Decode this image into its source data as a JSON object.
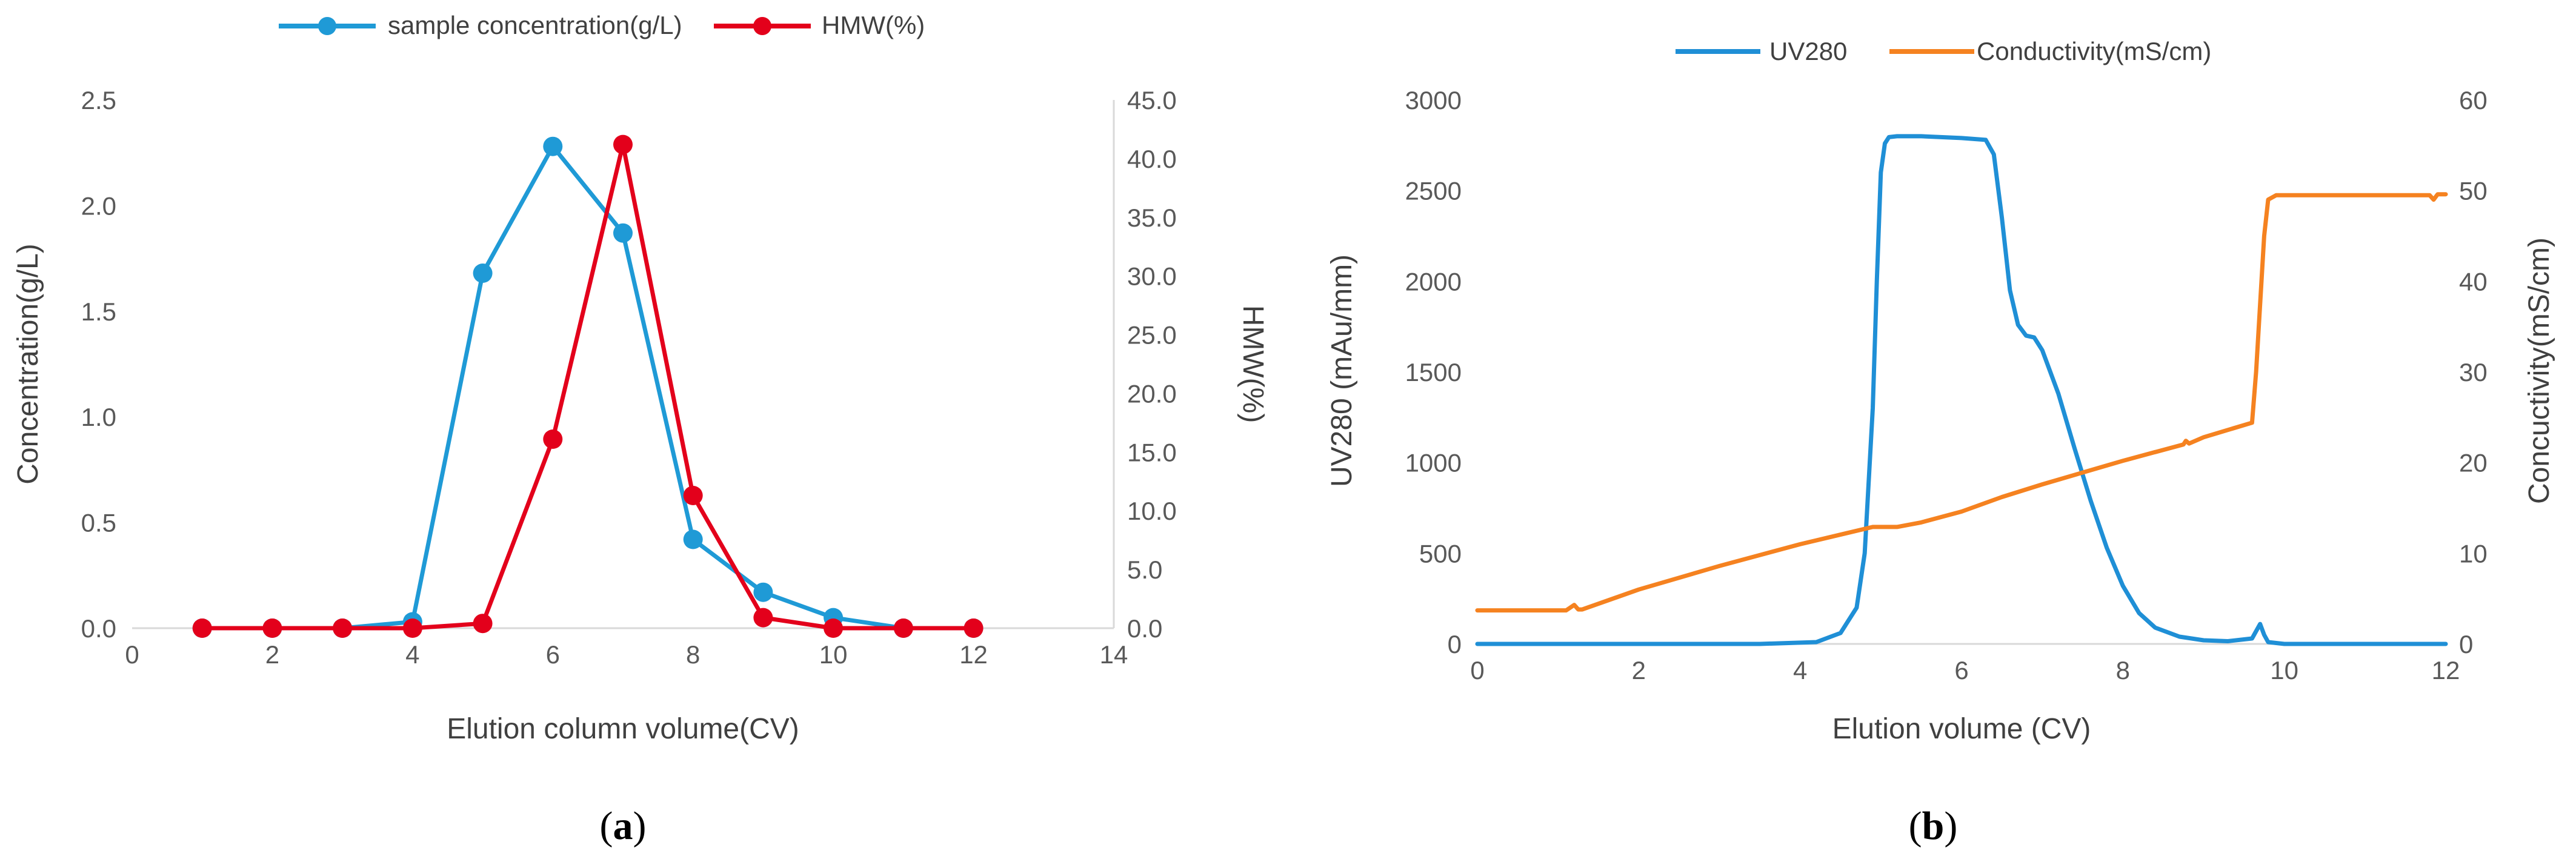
{
  "chart_data": [
    {
      "type": "line",
      "panel_label": "a",
      "xlabel": "Elution column volume(CV)",
      "ylabel": "Concentration(g/L)",
      "y2label": "HMW(%)",
      "xlim": [
        0,
        14
      ],
      "xticks": [
        0,
        2,
        4,
        6,
        8,
        10,
        12,
        14
      ],
      "ylim": [
        0,
        2.5
      ],
      "yticks": [
        "0.0",
        "0.5",
        "1.0",
        "1.5",
        "2.0",
        "2.5"
      ],
      "y2lim": [
        0,
        45
      ],
      "y2ticks": [
        "0.0",
        "5.0",
        "10.0",
        "15.0",
        "20.0",
        "25.0",
        "30.0",
        "35.0",
        "40.0",
        "45.0"
      ],
      "grid": false,
      "legend_position": "top",
      "series": [
        {
          "name": "sample concentration(g/L)",
          "axis": "left",
          "color": "#1f9ad6",
          "markers": true,
          "x": [
            1,
            2,
            3,
            4,
            5,
            6,
            7,
            8,
            9,
            10,
            11,
            12
          ],
          "y": [
            0.0,
            0.0,
            0.0,
            0.03,
            1.68,
            2.28,
            1.87,
            0.42,
            0.17,
            0.05,
            0.0,
            0.0
          ]
        },
        {
          "name": "HMW(%)",
          "axis": "right",
          "color": "#e3001b",
          "markers": true,
          "x": [
            1,
            2,
            3,
            4,
            5,
            6,
            7,
            8,
            9,
            10,
            11,
            12
          ],
          "y": [
            0.0,
            0.0,
            0.0,
            0.0,
            0.4,
            16.1,
            41.2,
            11.3,
            0.9,
            0.0,
            0.0,
            0.0
          ]
        }
      ]
    },
    {
      "type": "line",
      "panel_label": "b",
      "xlabel": "Elution volume (CV)",
      "ylabel": "UV280 (mAu/mm)",
      "y2label": "Concuctivity(mS/cm)",
      "xlim": [
        0,
        12
      ],
      "xticks": [
        0,
        2,
        4,
        6,
        8,
        10,
        12
      ],
      "ylim": [
        0,
        3000
      ],
      "yticks": [
        0,
        500,
        1000,
        1500,
        2000,
        2500,
        3000
      ],
      "y2lim": [
        0,
        60
      ],
      "y2ticks": [
        0,
        10,
        20,
        30,
        40,
        50,
        60
      ],
      "grid": false,
      "legend_position": "top",
      "series": [
        {
          "name": "UV280",
          "axis": "left",
          "color": "#1f8fd6",
          "markers": false,
          "x": [
            0,
            3.5,
            4.2,
            4.5,
            4.7,
            4.8,
            4.9,
            4.95,
            5.0,
            5.05,
            5.1,
            5.2,
            5.5,
            6.0,
            6.3,
            6.4,
            6.5,
            6.6,
            6.7,
            6.8,
            6.9,
            7.0,
            7.2,
            7.4,
            7.6,
            7.8,
            8.0,
            8.2,
            8.4,
            8.7,
            9.0,
            9.3,
            9.6,
            9.7,
            9.75,
            9.8,
            10.0,
            12.0
          ],
          "y": [
            0,
            0,
            10,
            60,
            200,
            500,
            1300,
            2000,
            2600,
            2760,
            2795,
            2800,
            2800,
            2790,
            2780,
            2700,
            2350,
            1950,
            1760,
            1700,
            1690,
            1620,
            1380,
            1080,
            790,
            530,
            320,
            170,
            90,
            40,
            20,
            15,
            30,
            110,
            50,
            10,
            0,
            0
          ]
        },
        {
          "name": "Conductivity(mS/cm)",
          "axis": "right",
          "color": "#f58220",
          "markers": false,
          "x": [
            0,
            1.1,
            1.2,
            1.25,
            1.3,
            2.0,
            3.0,
            4.0,
            4.9,
            5.2,
            5.5,
            6.0,
            6.5,
            7.0,
            8.0,
            8.75,
            8.78,
            8.82,
            9.0,
            9.6,
            9.65,
            9.75,
            9.8,
            9.9,
            10.5,
            11.0,
            11.8,
            11.85,
            11.9,
            12.0
          ],
          "y": [
            3.7,
            3.7,
            4.3,
            3.8,
            3.8,
            6.0,
            8.6,
            11.0,
            12.9,
            12.9,
            13.4,
            14.6,
            16.2,
            17.6,
            20.2,
            22.0,
            22.4,
            22.1,
            22.8,
            24.4,
            30.0,
            45.0,
            49.0,
            49.5,
            49.5,
            49.5,
            49.5,
            49.0,
            49.6,
            49.6
          ]
        }
      ]
    }
  ]
}
